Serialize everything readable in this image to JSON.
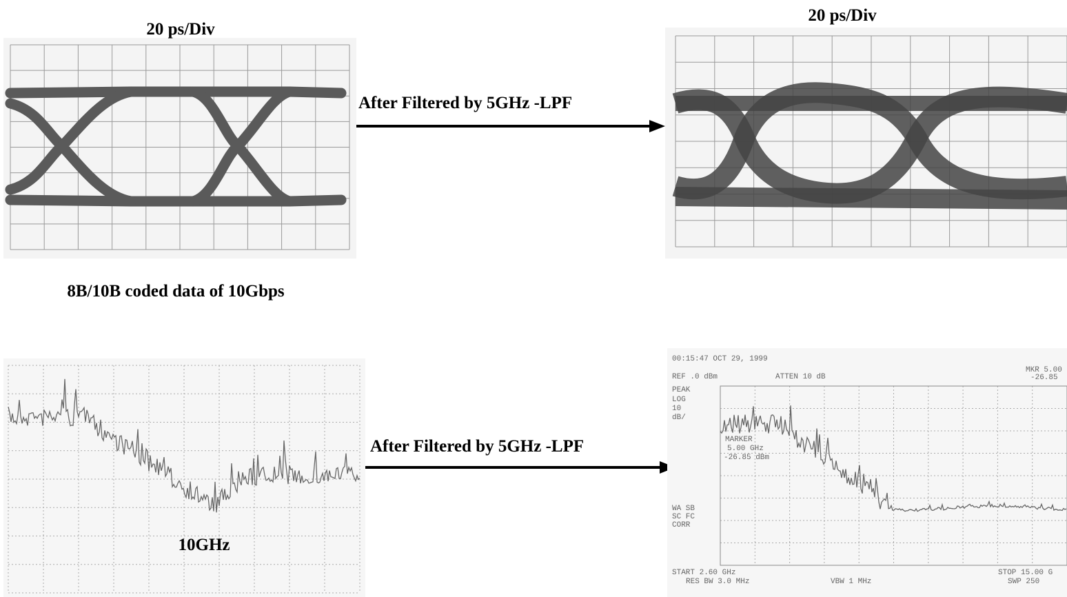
{
  "eye_diagrams": {
    "before": {
      "scale_label": "20 ps/Div"
    },
    "after": {
      "scale_label": "20 ps/Div"
    }
  },
  "arrows": [
    {
      "label": "After Filtered by 5GHz -LPF"
    },
    {
      "label": "After Filtered by 5GHz -LPF"
    }
  ],
  "caption": "8B/10B coded data of 10Gbps",
  "spectra": {
    "before": {
      "marker_label": "10GHz"
    },
    "after": {
      "screen_text": {
        "timestamp": "00:15:47 OCT 29, 1999",
        "ref": "REF .0 dBm",
        "atten": "ATTEN 10 dB",
        "mkr": "MKR 5.00",
        "mkr_level": "-26.85",
        "mode": "PEAK",
        "scale_1": "LOG",
        "scale_2": "10",
        "scale_3": "dB/",
        "marker_1": "MARKER",
        "marker_2": "5.00 GHz",
        "marker_3": "-26.85 dBm",
        "side_1": "WA SB",
        "side_2": "SC FC",
        "side_3": "CORR",
        "start": "START 2.60 GHz",
        "rbw": "RES BW 3.0 MHz",
        "vbw": "VBW 1 MHz",
        "stop": "STOP 15.00 G",
        "swp": "SWP 250"
      }
    }
  }
}
